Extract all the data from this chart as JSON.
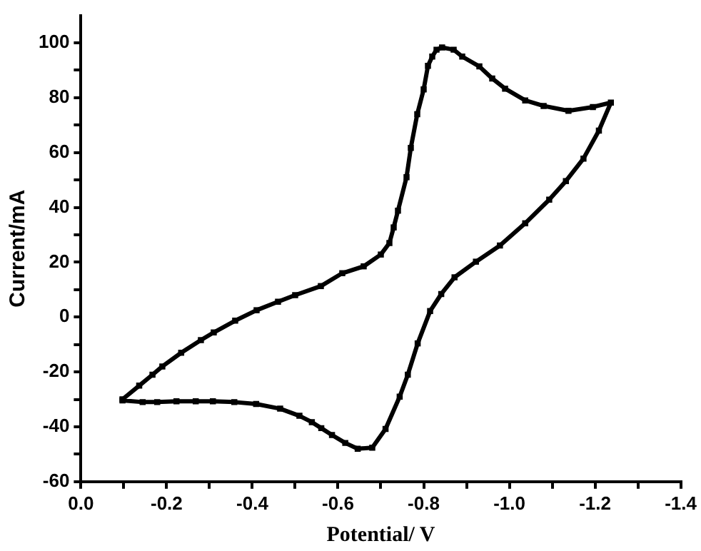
{
  "chart_data": {
    "type": "line",
    "xlabel": "Potential/ V",
    "ylabel": "Current/mA",
    "xlim": [
      0,
      -1.4
    ],
    "ylim": [
      -60,
      110
    ],
    "xticks": [
      {
        "value": 0,
        "label": "0.0"
      },
      {
        "value": -0.1,
        "label": null
      },
      -0.2,
      {
        "value": -0.3,
        "label": null
      },
      -0.4,
      {
        "value": -0.5,
        "label": null
      },
      -0.6,
      {
        "value": -0.7,
        "label": null
      },
      -0.8,
      {
        "value": -0.9,
        "label": null
      },
      {
        "value": -1,
        "label": "-1.0"
      },
      {
        "value": -1.1,
        "label": null
      },
      -1.2,
      {
        "value": -1.3,
        "label": null
      },
      -1.4
    ],
    "yticks": [
      -60,
      {
        "value": -50,
        "label": null
      },
      -40,
      {
        "value": -30,
        "label": null
      },
      -20,
      {
        "value": -10,
        "label": null
      },
      0,
      {
        "value": 10,
        "label": null
      },
      20,
      {
        "value": 30,
        "label": null
      },
      40,
      {
        "value": 50,
        "label": null
      },
      60,
      {
        "value": 70,
        "label": null
      },
      80,
      {
        "value": 90,
        "label": null
      },
      100
    ],
    "grid": false,
    "legend": false,
    "marker": "square",
    "line_style": "solid",
    "series": [
      {
        "color": "#000000",
        "x": [
          -0.097,
          -0.136,
          -0.167,
          -0.19,
          -0.234,
          -0.28,
          -0.31,
          -0.36,
          -0.41,
          -0.46,
          -0.5,
          -0.56,
          -0.61,
          -0.66,
          -0.7,
          -0.72,
          -0.73,
          -0.74,
          -0.76,
          -0.77,
          -0.785,
          -0.8,
          -0.81,
          -0.82,
          -0.83,
          -0.843,
          -0.87,
          -0.89,
          -0.93,
          -0.96,
          -0.99,
          -1.037,
          -1.08,
          -1.138,
          -1.195,
          -1.237,
          -1.209,
          -1.173,
          -1.132,
          -1.093,
          -1.037,
          -0.978,
          -0.922,
          -0.872,
          -0.841,
          -0.815,
          -0.786,
          -0.763,
          -0.744,
          -0.711,
          -0.68,
          -0.646,
          -0.617,
          -0.586,
          -0.561,
          -0.539,
          -0.51,
          -0.465,
          -0.409,
          -0.358,
          -0.308,
          -0.268,
          -0.223,
          -0.178,
          -0.144,
          -0.097
        ],
        "values": [
          -30,
          -25,
          -21,
          -18,
          -13,
          -8.4,
          -5.6,
          -1.3,
          2.5,
          5.6,
          8,
          11.3,
          16,
          18.5,
          22.8,
          27,
          32.7,
          38.8,
          51,
          61.7,
          74,
          83,
          91.6,
          95,
          97.5,
          98.3,
          97.5,
          95,
          91.4,
          87,
          83.3,
          79,
          77,
          75.2,
          76.6,
          78.2,
          68,
          57.8,
          49.6,
          42.8,
          34.2,
          26.1,
          20.2,
          14.5,
          8.4,
          2.2,
          -9.6,
          -21,
          -29,
          -40.8,
          -47.6,
          -48,
          -45.9,
          -43,
          -40.5,
          -38.3,
          -36,
          -33.4,
          -31.7,
          -31,
          -30.7,
          -30.7,
          -30.7,
          -31,
          -31,
          -30.4
        ]
      }
    ]
  }
}
